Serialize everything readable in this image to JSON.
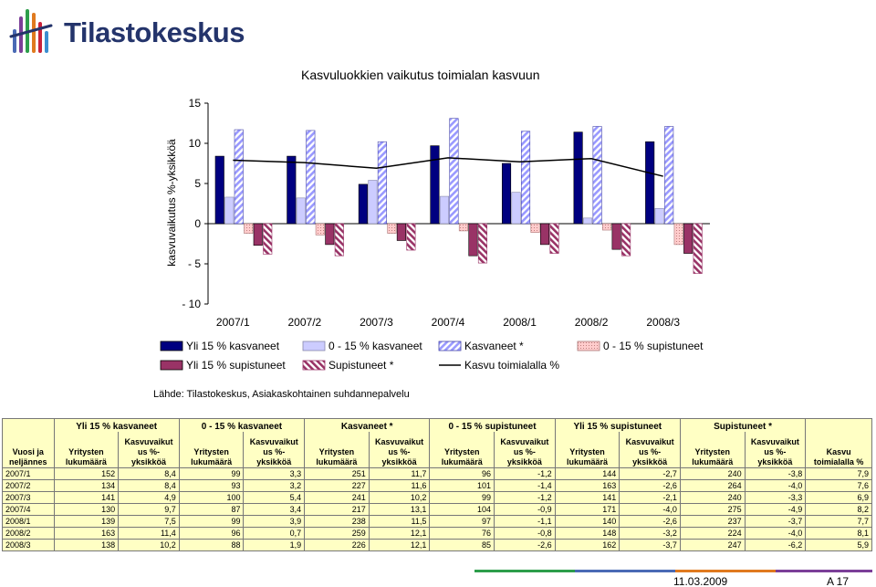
{
  "brand": {
    "name": "Tilastokeskus"
  },
  "source": "Lähde: Tilastokeskus, Asiakaskohtainen suhdannepalvelu",
  "footer": {
    "date": "11.03.2009",
    "page": "A 17"
  },
  "colors": {
    "yli15_kasvaneet": "#000080",
    "k0_15_kasvaneet": "#ccccff",
    "kasvaneet": "#9999ff",
    "k0_15_supistuneet": "#ffcccc",
    "yli15_supistuneet": "#993366",
    "supistuneet": "#993366",
    "kasvu_line": "#000000",
    "table_bg": "#ffffc4"
  },
  "chart_data": {
    "type": "bar",
    "title": "Kasvuluokkien vaikutus toimialan kasvuun",
    "ylabel": "kasvuvaikutus %-yksikköä",
    "xlabel": "",
    "ylim": [
      -10,
      15
    ],
    "yticks": [
      15,
      10,
      5,
      0,
      -5,
      -10
    ],
    "categories": [
      "2007/1",
      "2007/2",
      "2007/3",
      "2007/4",
      "2008/1",
      "2008/2",
      "2008/3"
    ],
    "legend_position": "bottom",
    "series": [
      {
        "name": "Yli 15 % kasvaneet",
        "kind": "bar",
        "values": [
          8.4,
          8.4,
          4.9,
          9.7,
          7.5,
          11.4,
          10.2
        ]
      },
      {
        "name": "0 - 15 % kasvaneet",
        "kind": "bar",
        "values": [
          3.3,
          3.2,
          5.4,
          3.4,
          3.9,
          0.7,
          1.9
        ]
      },
      {
        "name": "Kasvaneet *",
        "kind": "bar",
        "values": [
          11.7,
          11.6,
          10.2,
          13.1,
          11.5,
          12.1,
          12.1
        ]
      },
      {
        "name": "0 - 15 % supistuneet",
        "kind": "bar",
        "values": [
          -1.2,
          -1.4,
          -1.2,
          -0.9,
          -1.1,
          -0.8,
          -2.6
        ]
      },
      {
        "name": "Yli 15 % supistuneet",
        "kind": "bar",
        "values": [
          -2.7,
          -2.6,
          -2.1,
          -4.0,
          -2.6,
          -3.2,
          -3.7
        ]
      },
      {
        "name": "Supistuneet *",
        "kind": "bar",
        "values": [
          -3.8,
          -4.0,
          -3.3,
          -4.9,
          -3.7,
          -4.0,
          -6.2
        ]
      },
      {
        "name": "Kasvu toimialalla %",
        "kind": "line",
        "values": [
          7.9,
          7.6,
          6.9,
          8.2,
          7.7,
          8.1,
          5.9
        ]
      }
    ]
  },
  "table": {
    "group_headers": [
      "Yli 15 % kasvaneet",
      "0 - 15 % kasvaneet",
      "Kasvaneet *",
      "0 - 15 % supistuneet",
      "Yli 15 % supistuneet",
      "Supistuneet *"
    ],
    "row_header": "Vuosi ja neljännes",
    "col_count": "Yritysten lukumäärä",
    "col_effect": "Kasvuvaikut us %-yksikköä",
    "col_total": "Kasvu toimialalla %",
    "rows": [
      {
        "period": "2007/1",
        "cells": [
          "152",
          "8,4",
          "99",
          "3,3",
          "251",
          "11,7",
          "96",
          "-1,2",
          "144",
          "-2,7",
          "240",
          "-3,8",
          "7,9"
        ]
      },
      {
        "period": "2007/2",
        "cells": [
          "134",
          "8,4",
          "93",
          "3,2",
          "227",
          "11,6",
          "101",
          "-1,4",
          "163",
          "-2,6",
          "264",
          "-4,0",
          "7,6"
        ]
      },
      {
        "period": "2007/3",
        "cells": [
          "141",
          "4,9",
          "100",
          "5,4",
          "241",
          "10,2",
          "99",
          "-1,2",
          "141",
          "-2,1",
          "240",
          "-3,3",
          "6,9"
        ]
      },
      {
        "period": "2007/4",
        "cells": [
          "130",
          "9,7",
          "87",
          "3,4",
          "217",
          "13,1",
          "104",
          "-0,9",
          "171",
          "-4,0",
          "275",
          "-4,9",
          "8,2"
        ]
      },
      {
        "period": "2008/1",
        "cells": [
          "139",
          "7,5",
          "99",
          "3,9",
          "238",
          "11,5",
          "97",
          "-1,1",
          "140",
          "-2,6",
          "237",
          "-3,7",
          "7,7"
        ]
      },
      {
        "period": "2008/2",
        "cells": [
          "163",
          "11,4",
          "96",
          "0,7",
          "259",
          "12,1",
          "76",
          "-0,8",
          "148",
          "-3,2",
          "224",
          "-4,0",
          "8,1"
        ]
      },
      {
        "period": "2008/3",
        "cells": [
          "138",
          "10,2",
          "88",
          "1,9",
          "226",
          "12,1",
          "85",
          "-2,6",
          "162",
          "-3,7",
          "247",
          "-6,2",
          "5,9"
        ]
      }
    ]
  }
}
